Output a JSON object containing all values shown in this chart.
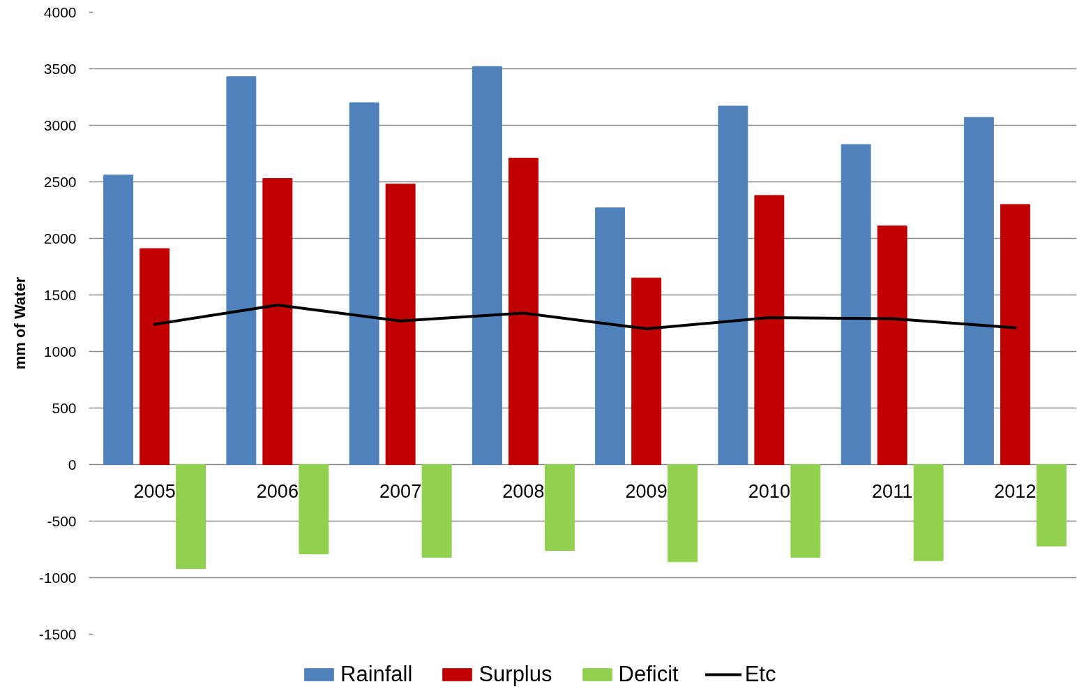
{
  "chart_data": {
    "type": "bar",
    "ylabel": "mm of Water",
    "categories": [
      "2005",
      "2006",
      "2007",
      "2008",
      "2009",
      "2010",
      "2011",
      "2012"
    ],
    "series": [
      {
        "name": "Rainfall",
        "color": "#4f81bd",
        "values": [
          2560,
          3430,
          3200,
          3520,
          2270,
          3170,
          2830,
          3070
        ]
      },
      {
        "name": "Surplus",
        "color": "#c00000",
        "values": [
          1910,
          2530,
          2480,
          2710,
          1650,
          2380,
          2110,
          2300
        ]
      },
      {
        "name": "Deficit",
        "color": "#92d050",
        "values": [
          -920,
          -790,
          -820,
          -760,
          -860,
          -820,
          -850,
          -720
        ]
      },
      {
        "name": "Etc",
        "type": "line",
        "color": "#000000",
        "values": [
          1240,
          1410,
          1270,
          1340,
          1200,
          1300,
          1290,
          1210
        ]
      }
    ],
    "ylim": [
      -1500,
      4000
    ],
    "yticks": [
      -1500,
      -1000,
      -500,
      0,
      500,
      1000,
      1500,
      2000,
      2500,
      3000,
      3500,
      4000
    ],
    "grid": "y",
    "legend": "bottom"
  }
}
